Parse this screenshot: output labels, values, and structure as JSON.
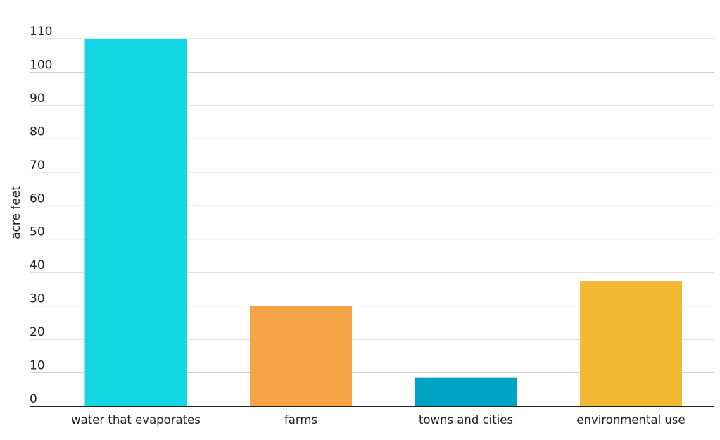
{
  "chart_data": {
    "type": "bar",
    "title": "",
    "xlabel": "",
    "ylabel": "acre feet",
    "ylim": [
      0,
      110
    ],
    "yticks": [
      0,
      10,
      20,
      30,
      40,
      50,
      60,
      70,
      80,
      90,
      100,
      110
    ],
    "grid": true,
    "legend": "none",
    "categories": [
      "water that evaporates",
      "farms",
      "towns and cities",
      "environmental use"
    ],
    "values": [
      110,
      30,
      8.5,
      37.5
    ],
    "colors": [
      "#13d8e4",
      "#f5a346",
      "#00a2c4",
      "#f4b934"
    ]
  }
}
